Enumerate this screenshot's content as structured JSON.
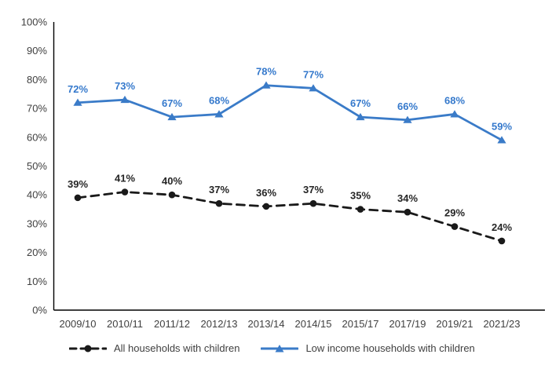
{
  "chart_data": {
    "type": "line",
    "title": "",
    "categories": [
      "2009/10",
      "2010/11",
      "2011/12",
      "2012/13",
      "2013/14",
      "2014/15",
      "2015/17",
      "2017/19",
      "2019/21",
      "2021/23"
    ],
    "series": [
      {
        "name": "All households with children",
        "values": [
          39,
          41,
          40,
          37,
          36,
          37,
          35,
          34,
          29,
          24
        ],
        "color": "#1a1a1a",
        "label_color": "#262626",
        "line_style": "dashed",
        "marker": "circle"
      },
      {
        "name": "Low income households with children",
        "values": [
          72,
          73,
          67,
          68,
          78,
          77,
          67,
          66,
          68,
          59
        ],
        "color": "#3a7bc8",
        "label_color": "#3579cc",
        "line_style": "solid",
        "marker": "triangle"
      }
    ],
    "ylim": [
      0,
      100
    ],
    "y_tick_step": 10,
    "y_tick_labels": [
      "0%",
      "10%",
      "20%",
      "30%",
      "40%",
      "50%",
      "60%",
      "70%",
      "80%",
      "90%",
      "100%"
    ],
    "data_label_suffix": "%",
    "grid": false,
    "legend_position": "bottom",
    "axis_color": "#000000",
    "tick_label_color": "#404040"
  }
}
